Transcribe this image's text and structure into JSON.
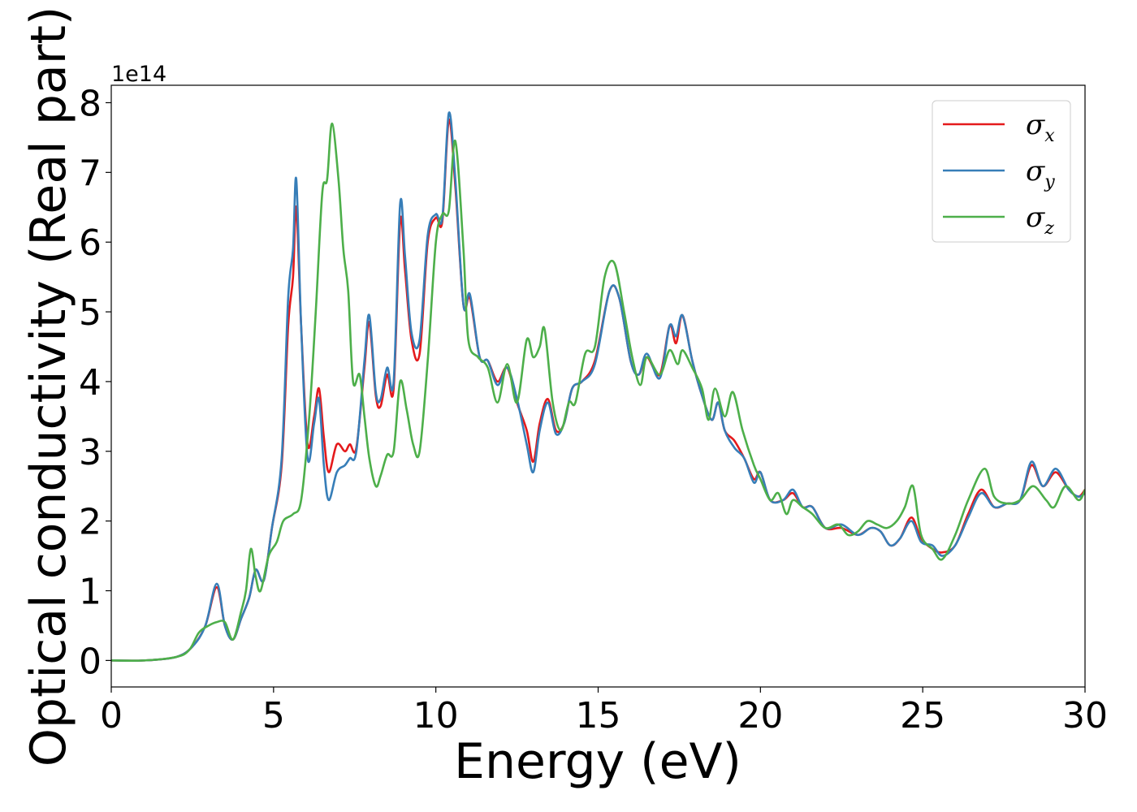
{
  "chart_data": {
    "type": "line",
    "title": "",
    "xlabel": "Energy (eV)",
    "ylabel": "Optical conductivity (Real part)",
    "y_offset_label": "1e14",
    "xlim": [
      0,
      30
    ],
    "ylim": [
      -0.38,
      8.25
    ],
    "x_ticks": [
      0,
      5,
      10,
      15,
      20,
      25,
      30
    ],
    "y_ticks": [
      0,
      1,
      2,
      3,
      4,
      5,
      6,
      7,
      8
    ],
    "grid": false,
    "legend_position": "top-right",
    "series": [
      {
        "name": "σ_x",
        "symbol": "σ",
        "subscript": "x",
        "color": "#e41a1c",
        "points": [
          [
            0,
            0
          ],
          [
            1,
            0
          ],
          [
            2,
            0.05
          ],
          [
            2.5,
            0.2
          ],
          [
            2.9,
            0.5
          ],
          [
            3.25,
            1.05
          ],
          [
            3.5,
            0.5
          ],
          [
            3.75,
            0.3
          ],
          [
            4.0,
            0.6
          ],
          [
            4.25,
            0.9
          ],
          [
            4.45,
            1.3
          ],
          [
            4.7,
            1.15
          ],
          [
            4.95,
            1.9
          ],
          [
            5.25,
            2.8
          ],
          [
            5.45,
            4.8
          ],
          [
            5.6,
            5.5
          ],
          [
            5.7,
            6.5
          ],
          [
            5.85,
            4.8
          ],
          [
            6.05,
            3.1
          ],
          [
            6.25,
            3.5
          ],
          [
            6.4,
            3.9
          ],
          [
            6.55,
            3.2
          ],
          [
            6.7,
            2.7
          ],
          [
            6.95,
            3.1
          ],
          [
            7.2,
            3.0
          ],
          [
            7.35,
            3.1
          ],
          [
            7.55,
            3.05
          ],
          [
            7.8,
            4.2
          ],
          [
            7.95,
            4.85
          ],
          [
            8.15,
            3.8
          ],
          [
            8.3,
            3.65
          ],
          [
            8.5,
            4.1
          ],
          [
            8.7,
            3.9
          ],
          [
            8.9,
            6.3
          ],
          [
            9.05,
            5.6
          ],
          [
            9.25,
            4.6
          ],
          [
            9.5,
            4.4
          ],
          [
            9.75,
            6.0
          ],
          [
            10.0,
            6.35
          ],
          [
            10.2,
            6.3
          ],
          [
            10.4,
            7.75
          ],
          [
            10.6,
            6.8
          ],
          [
            10.85,
            5.1
          ],
          [
            11.05,
            5.2
          ],
          [
            11.35,
            4.35
          ],
          [
            11.6,
            4.3
          ],
          [
            11.9,
            4.0
          ],
          [
            12.2,
            4.2
          ],
          [
            12.5,
            3.7
          ],
          [
            12.8,
            3.3
          ],
          [
            13.0,
            2.85
          ],
          [
            13.2,
            3.4
          ],
          [
            13.45,
            3.75
          ],
          [
            13.7,
            3.3
          ],
          [
            13.95,
            3.4
          ],
          [
            14.2,
            3.9
          ],
          [
            14.5,
            4.0
          ],
          [
            14.9,
            4.3
          ],
          [
            15.35,
            5.3
          ],
          [
            15.65,
            5.2
          ],
          [
            16.0,
            4.3
          ],
          [
            16.25,
            4.1
          ],
          [
            16.5,
            4.35
          ],
          [
            16.9,
            4.1
          ],
          [
            17.2,
            4.8
          ],
          [
            17.4,
            4.55
          ],
          [
            17.6,
            4.95
          ],
          [
            17.9,
            4.3
          ],
          [
            18.2,
            3.8
          ],
          [
            18.5,
            3.45
          ],
          [
            18.7,
            3.7
          ],
          [
            18.9,
            3.3
          ],
          [
            19.2,
            3.15
          ],
          [
            19.5,
            2.9
          ],
          [
            19.8,
            2.6
          ],
          [
            20.0,
            2.7
          ],
          [
            20.3,
            2.3
          ],
          [
            20.7,
            2.3
          ],
          [
            21.0,
            2.4
          ],
          [
            21.3,
            2.2
          ],
          [
            21.6,
            2.2
          ],
          [
            22.0,
            1.9
          ],
          [
            22.5,
            1.9
          ],
          [
            23.0,
            1.8
          ],
          [
            23.4,
            1.9
          ],
          [
            23.7,
            1.85
          ],
          [
            24.0,
            1.65
          ],
          [
            24.3,
            1.75
          ],
          [
            24.65,
            2.05
          ],
          [
            24.95,
            1.75
          ],
          [
            25.3,
            1.6
          ],
          [
            25.6,
            1.55
          ],
          [
            26.0,
            1.65
          ],
          [
            26.4,
            2.1
          ],
          [
            26.8,
            2.45
          ],
          [
            27.2,
            2.2
          ],
          [
            27.6,
            2.25
          ],
          [
            28.0,
            2.3
          ],
          [
            28.35,
            2.8
          ],
          [
            28.7,
            2.5
          ],
          [
            29.1,
            2.7
          ],
          [
            29.5,
            2.45
          ],
          [
            29.8,
            2.35
          ],
          [
            30.0,
            2.45
          ]
        ]
      },
      {
        "name": "σ_y",
        "symbol": "σ",
        "subscript": "y",
        "color": "#377eb8",
        "points": [
          [
            0,
            0
          ],
          [
            1,
            0
          ],
          [
            2,
            0.05
          ],
          [
            2.5,
            0.2
          ],
          [
            2.9,
            0.5
          ],
          [
            3.25,
            1.1
          ],
          [
            3.5,
            0.5
          ],
          [
            3.75,
            0.3
          ],
          [
            4.0,
            0.6
          ],
          [
            4.25,
            0.9
          ],
          [
            4.45,
            1.3
          ],
          [
            4.7,
            1.15
          ],
          [
            4.95,
            1.9
          ],
          [
            5.25,
            2.9
          ],
          [
            5.45,
            5.2
          ],
          [
            5.6,
            5.9
          ],
          [
            5.7,
            6.9
          ],
          [
            5.85,
            4.8
          ],
          [
            6.05,
            2.9
          ],
          [
            6.25,
            3.4
          ],
          [
            6.4,
            3.75
          ],
          [
            6.55,
            2.8
          ],
          [
            6.7,
            2.3
          ],
          [
            6.95,
            2.7
          ],
          [
            7.2,
            2.8
          ],
          [
            7.35,
            2.9
          ],
          [
            7.55,
            3.0
          ],
          [
            7.8,
            4.3
          ],
          [
            7.95,
            4.95
          ],
          [
            8.15,
            3.85
          ],
          [
            8.3,
            3.75
          ],
          [
            8.5,
            4.2
          ],
          [
            8.7,
            4.0
          ],
          [
            8.9,
            6.55
          ],
          [
            9.05,
            5.8
          ],
          [
            9.25,
            4.7
          ],
          [
            9.5,
            4.6
          ],
          [
            9.75,
            6.1
          ],
          [
            10.0,
            6.4
          ],
          [
            10.2,
            6.35
          ],
          [
            10.4,
            7.85
          ],
          [
            10.6,
            6.9
          ],
          [
            10.85,
            5.1
          ],
          [
            11.05,
            5.25
          ],
          [
            11.35,
            4.35
          ],
          [
            11.6,
            4.3
          ],
          [
            11.9,
            3.95
          ],
          [
            12.2,
            4.2
          ],
          [
            12.5,
            3.75
          ],
          [
            12.8,
            3.1
          ],
          [
            13.0,
            2.7
          ],
          [
            13.2,
            3.3
          ],
          [
            13.45,
            3.7
          ],
          [
            13.7,
            3.25
          ],
          [
            13.95,
            3.4
          ],
          [
            14.2,
            3.9
          ],
          [
            14.5,
            4.0
          ],
          [
            14.9,
            4.25
          ],
          [
            15.35,
            5.3
          ],
          [
            15.65,
            5.2
          ],
          [
            16.0,
            4.3
          ],
          [
            16.25,
            4.1
          ],
          [
            16.5,
            4.4
          ],
          [
            16.9,
            4.05
          ],
          [
            17.2,
            4.8
          ],
          [
            17.4,
            4.65
          ],
          [
            17.6,
            4.95
          ],
          [
            17.9,
            4.3
          ],
          [
            18.2,
            3.8
          ],
          [
            18.5,
            3.45
          ],
          [
            18.7,
            3.7
          ],
          [
            18.9,
            3.3
          ],
          [
            19.2,
            3.05
          ],
          [
            19.5,
            2.9
          ],
          [
            19.8,
            2.55
          ],
          [
            20.0,
            2.7
          ],
          [
            20.3,
            2.3
          ],
          [
            20.7,
            2.3
          ],
          [
            21.0,
            2.45
          ],
          [
            21.3,
            2.2
          ],
          [
            21.6,
            2.2
          ],
          [
            22.0,
            1.9
          ],
          [
            22.5,
            1.95
          ],
          [
            23.0,
            1.8
          ],
          [
            23.4,
            1.9
          ],
          [
            23.7,
            1.85
          ],
          [
            24.0,
            1.65
          ],
          [
            24.3,
            1.75
          ],
          [
            24.65,
            2.0
          ],
          [
            24.95,
            1.7
          ],
          [
            25.3,
            1.65
          ],
          [
            25.6,
            1.5
          ],
          [
            26.0,
            1.65
          ],
          [
            26.4,
            2.05
          ],
          [
            26.8,
            2.4
          ],
          [
            27.2,
            2.2
          ],
          [
            27.6,
            2.25
          ],
          [
            28.0,
            2.3
          ],
          [
            28.35,
            2.85
          ],
          [
            28.7,
            2.5
          ],
          [
            29.1,
            2.75
          ],
          [
            29.5,
            2.45
          ],
          [
            29.8,
            2.35
          ],
          [
            30.0,
            2.4
          ]
        ]
      },
      {
        "name": "σ_z",
        "symbol": "σ",
        "subscript": "z",
        "color": "#4daf4a",
        "points": [
          [
            0,
            0
          ],
          [
            1,
            0
          ],
          [
            2,
            0.05
          ],
          [
            2.4,
            0.15
          ],
          [
            2.7,
            0.4
          ],
          [
            3.0,
            0.5
          ],
          [
            3.25,
            0.55
          ],
          [
            3.5,
            0.55
          ],
          [
            3.75,
            0.3
          ],
          [
            4.0,
            0.7
          ],
          [
            4.15,
            1.0
          ],
          [
            4.3,
            1.6
          ],
          [
            4.45,
            1.2
          ],
          [
            4.6,
            1.0
          ],
          [
            4.85,
            1.5
          ],
          [
            5.1,
            1.7
          ],
          [
            5.3,
            2.0
          ],
          [
            5.6,
            2.1
          ],
          [
            5.85,
            2.3
          ],
          [
            6.1,
            3.5
          ],
          [
            6.3,
            5.0
          ],
          [
            6.5,
            6.7
          ],
          [
            6.65,
            6.9
          ],
          [
            6.8,
            7.7
          ],
          [
            7.0,
            6.9
          ],
          [
            7.15,
            5.9
          ],
          [
            7.3,
            5.3
          ],
          [
            7.45,
            4.0
          ],
          [
            7.65,
            4.1
          ],
          [
            7.8,
            3.5
          ],
          [
            7.95,
            2.9
          ],
          [
            8.15,
            2.5
          ],
          [
            8.3,
            2.65
          ],
          [
            8.5,
            2.95
          ],
          [
            8.7,
            3.0
          ],
          [
            8.9,
            4.0
          ],
          [
            9.1,
            3.6
          ],
          [
            9.3,
            3.1
          ],
          [
            9.5,
            3.0
          ],
          [
            9.75,
            4.3
          ],
          [
            10.0,
            6.0
          ],
          [
            10.2,
            6.4
          ],
          [
            10.4,
            6.45
          ],
          [
            10.6,
            7.45
          ],
          [
            10.85,
            5.9
          ],
          [
            11.0,
            4.6
          ],
          [
            11.3,
            4.35
          ],
          [
            11.6,
            4.2
          ],
          [
            11.9,
            3.7
          ],
          [
            12.2,
            4.25
          ],
          [
            12.5,
            3.7
          ],
          [
            12.8,
            4.6
          ],
          [
            13.0,
            4.35
          ],
          [
            13.2,
            4.5
          ],
          [
            13.35,
            4.75
          ],
          [
            13.6,
            3.7
          ],
          [
            13.85,
            3.3
          ],
          [
            14.1,
            3.7
          ],
          [
            14.3,
            3.7
          ],
          [
            14.6,
            4.4
          ],
          [
            14.9,
            4.5
          ],
          [
            15.2,
            5.5
          ],
          [
            15.5,
            5.7
          ],
          [
            15.8,
            5.0
          ],
          [
            16.05,
            4.35
          ],
          [
            16.3,
            3.95
          ],
          [
            16.5,
            4.35
          ],
          [
            16.9,
            4.1
          ],
          [
            17.2,
            4.45
          ],
          [
            17.45,
            4.25
          ],
          [
            17.6,
            4.45
          ],
          [
            17.9,
            4.2
          ],
          [
            18.2,
            3.9
          ],
          [
            18.4,
            3.45
          ],
          [
            18.6,
            3.9
          ],
          [
            18.9,
            3.5
          ],
          [
            19.15,
            3.85
          ],
          [
            19.45,
            3.3
          ],
          [
            19.8,
            2.8
          ],
          [
            20.0,
            2.6
          ],
          [
            20.3,
            2.3
          ],
          [
            20.55,
            2.4
          ],
          [
            20.8,
            2.1
          ],
          [
            21.0,
            2.3
          ],
          [
            21.3,
            2.2
          ],
          [
            21.6,
            2.1
          ],
          [
            22.0,
            1.9
          ],
          [
            22.4,
            1.95
          ],
          [
            22.7,
            1.8
          ],
          [
            23.0,
            1.85
          ],
          [
            23.3,
            2.0
          ],
          [
            23.6,
            1.95
          ],
          [
            23.9,
            1.9
          ],
          [
            24.2,
            2.0
          ],
          [
            24.45,
            2.2
          ],
          [
            24.7,
            2.5
          ],
          [
            24.95,
            1.8
          ],
          [
            25.3,
            1.6
          ],
          [
            25.6,
            1.45
          ],
          [
            26.0,
            1.8
          ],
          [
            26.4,
            2.3
          ],
          [
            26.9,
            2.75
          ],
          [
            27.2,
            2.35
          ],
          [
            27.6,
            2.25
          ],
          [
            28.0,
            2.3
          ],
          [
            28.4,
            2.5
          ],
          [
            28.8,
            2.3
          ],
          [
            29.05,
            2.2
          ],
          [
            29.4,
            2.5
          ],
          [
            29.8,
            2.3
          ],
          [
            30.0,
            2.45
          ]
        ]
      }
    ]
  }
}
